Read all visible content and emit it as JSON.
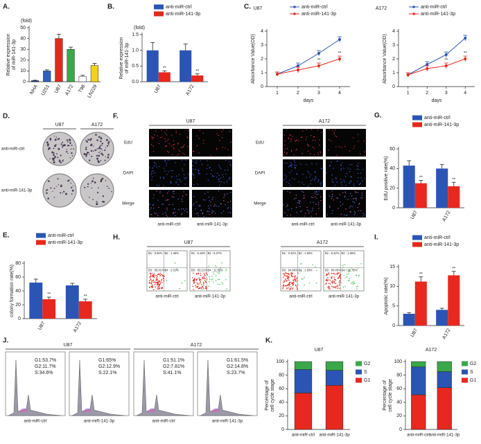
{
  "chart_data": [
    {
      "type": "bar",
      "label": "A.",
      "ylabel": [
        "Relative expression",
        "of miR-141-3p"
      ],
      "yunit": "(fold)",
      "categories": [
        "NHA",
        "U251",
        "U87",
        "A172",
        "T98",
        "LN229"
      ],
      "values": [
        1,
        10,
        40,
        30,
        5,
        15
      ],
      "errors": [
        0.4,
        1,
        4,
        2,
        1,
        2
      ],
      "colors": [
        "#1f3f99",
        "#2f5fc0",
        "#e02a1e",
        "#3aa84a",
        "#ffffff",
        "#f2d21a"
      ],
      "ylim": [
        0,
        50
      ],
      "yticks": [
        0,
        10,
        20,
        30,
        40,
        50
      ]
    },
    {
      "type": "bar",
      "label": "B.",
      "ylabel": [
        "Relative expression",
        "of miR-141-3p"
      ],
      "yunit": "(fold)",
      "legend": "top",
      "categories": [
        "U87",
        "A172"
      ],
      "series": [
        {
          "name": "anti-miR-ctrl",
          "color": "#2b55b5",
          "values": [
            1,
            1
          ],
          "errors": [
            0.25,
            0.2
          ]
        },
        {
          "name": "anti-miR-141-3p",
          "color": "#e8281e",
          "values": [
            0.3,
            0.2
          ],
          "errors": [
            0.05,
            0.05
          ],
          "significance": [
            "**",
            "**"
          ]
        }
      ],
      "ylim": [
        0,
        1.5
      ],
      "yticks": [
        {
          "value": 0,
          "label": "0.0"
        },
        0.5,
        {
          "value": 1,
          "label": "1.0"
        },
        1.5
      ]
    },
    {
      "type": "line",
      "label": "C.",
      "title": "U87",
      "ylabel": "Absorbance Value(OD)",
      "xlabel": "days",
      "legend": "top",
      "x": [
        1,
        2,
        3,
        4
      ],
      "xlim": [
        0.5,
        4.5
      ],
      "xticks": [
        1,
        2,
        3,
        4
      ],
      "series": [
        {
          "name": "anti-miR-ctrl",
          "color": "#2b55b5",
          "values": [
            0.9,
            1.5,
            2.4,
            3.4
          ],
          "errors": [
            0.15,
            0.2,
            0.2,
            0.2
          ]
        },
        {
          "name": "anti-miR-141-3p",
          "color": "#e8281e",
          "values": [
            0.9,
            1.2,
            1.5,
            2.0
          ],
          "errors": [
            0.15,
            0.2,
            0.2,
            0.2
          ],
          "significance": [
            null,
            null,
            "**",
            "**"
          ]
        }
      ],
      "ylim": [
        0,
        4
      ],
      "yticks": [
        0,
        1,
        2,
        3,
        4
      ]
    },
    {
      "type": "line",
      "title": "A172",
      "ylabel": "Absorbance Value(OD)",
      "xlabel": "days",
      "legend": "top",
      "x": [
        1,
        2,
        3,
        4
      ],
      "xlim": [
        0.5,
        4.5
      ],
      "xticks": [
        1,
        2,
        3,
        4
      ],
      "series": [
        {
          "name": "anti-miR-ctrl",
          "color": "#2b55b5",
          "values": [
            0.85,
            1.6,
            2.3,
            3.5
          ],
          "errors": [
            0.15,
            0.2,
            0.2,
            0.2
          ]
        },
        {
          "name": "anti-miR-141-3p",
          "color": "#e8281e",
          "values": [
            0.85,
            1.3,
            1.5,
            2.0
          ],
          "errors": [
            0.15,
            0.2,
            0.2,
            0.2
          ],
          "significance": [
            null,
            null,
            "**",
            "**"
          ]
        }
      ],
      "ylim": [
        0,
        4
      ],
      "yticks": [
        0,
        1,
        2,
        3,
        4
      ]
    },
    {
      "type": "bar",
      "label": "E.",
      "ylabel": "colony formation rate(%)",
      "legend": "top",
      "categories": [
        "U87",
        "A172"
      ],
      "series": [
        {
          "name": "anti-miR-ctrl",
          "color": "#2b55b5",
          "values": [
            52,
            48
          ],
          "errors": [
            5,
            3
          ]
        },
        {
          "name": "anti-miR-141-3p",
          "color": "#e8281e",
          "values": [
            28,
            25
          ],
          "errors": [
            3,
            3
          ],
          "significance": [
            "**",
            "**"
          ]
        }
      ],
      "ylim": [
        0,
        80
      ],
      "yticks": [
        0,
        20,
        40,
        60,
        80
      ]
    },
    {
      "type": "bar",
      "label": "G.",
      "ylabel": "EdU positive rate(%)",
      "legend": "top",
      "categories": [
        "U87",
        "A172"
      ],
      "series": [
        {
          "name": "anti-miR-ctrl",
          "color": "#2b55b5",
          "values": [
            43,
            40
          ],
          "errors": [
            5,
            4
          ]
        },
        {
          "name": "anti-miR-141-3p",
          "color": "#e8281e",
          "values": [
            25,
            22
          ],
          "errors": [
            3,
            4
          ],
          "significance": [
            "**",
            "**"
          ]
        }
      ],
      "ylim": [
        0,
        60
      ],
      "yticks": [
        0,
        20,
        40,
        60
      ]
    },
    {
      "type": "bar",
      "label": "I.",
      "ylabel": "Apoptotic rate(%)",
      "legend": "top",
      "categories": [
        "U87",
        "A172"
      ],
      "series": [
        {
          "name": "anti-miR-ctrl",
          "color": "#2b55b5",
          "values": [
            3,
            4
          ],
          "errors": [
            0.3,
            0.4
          ]
        },
        {
          "name": "anti-miR-141-3p",
          "color": "#e8281e",
          "values": [
            11.2,
            12.8
          ],
          "errors": [
            1.2,
            1
          ],
          "significance": [
            "**",
            "**"
          ]
        }
      ],
      "ylim": [
        0,
        15
      ],
      "yticks": [
        0,
        5,
        10,
        15
      ]
    },
    {
      "type": "bar",
      "stacked": true,
      "label": "K.",
      "title": "U87",
      "ylabel": [
        "Percentage of",
        "cell cycle stage"
      ],
      "legend": "right",
      "categories": [
        "anti-miR-ctrl",
        "anti-miR-141-3p"
      ],
      "series": [
        {
          "name": "G1",
          "color": "#e8281e",
          "values": [
            53.7,
            65
          ]
        },
        {
          "name": "S",
          "color": "#2b55b5",
          "values": [
            34.6,
            22.1
          ]
        },
        {
          "name": "G2",
          "color": "#3aa84a",
          "values": [
            11.7,
            12.9
          ]
        }
      ],
      "ylim": [
        0,
        100
      ],
      "yticks": [
        0,
        20,
        40,
        60,
        80,
        100
      ]
    },
    {
      "type": "bar",
      "stacked": true,
      "title": "A172",
      "ylabel": [
        "Percentage of",
        "cell cycle stage"
      ],
      "legend": "right",
      "categories": [
        "anti-miR-ctrl",
        "anti-miR-141-3p"
      ],
      "series": [
        {
          "name": "G1",
          "color": "#e8281e",
          "values": [
            51.1,
            61.5
          ]
        },
        {
          "name": "S",
          "color": "#2b55b5",
          "values": [
            41.1,
            23.7
          ]
        },
        {
          "name": "G2",
          "color": "#3aa84a",
          "values": [
            7.81,
            14.8
          ]
        }
      ],
      "ylim": [
        0,
        100
      ],
      "yticks": [
        0,
        20,
        40,
        60,
        80,
        100
      ]
    }
  ],
  "panels": {
    "D": {
      "label": "D.",
      "columns": [
        "U87",
        "A172"
      ],
      "rows": [
        "anti-miR-ctrl",
        "anti-miR-141-3p"
      ]
    },
    "F": {
      "label": "F.",
      "groups": [
        "U87",
        "A172"
      ],
      "rows": [
        "EdU",
        "DAPI",
        "Merge"
      ],
      "columns": [
        "anti-miR-ctrl",
        "anti-miR-141-3p"
      ]
    },
    "H": {
      "label": "H.",
      "groups": [
        "U87",
        "A172"
      ],
      "columns": [
        "anti-miR-ctrl",
        "anti-miR-141-3p"
      ],
      "quadrants": [
        [
          [
            "B1 : 0.92%",
            "B2 : 1.46%",
            "B3 : 95.61%",
            "B4 : 2.01%"
          ],
          [
            "B1 : 6.18%",
            "B2 : 5.37%",
            "B3 : 83.21%",
            "B4 : 11.26%"
          ]
        ],
        [
          [
            "B1 : 0.42%",
            "B2 : 1.56%",
            "B3 : 94.88%",
            "B4 : 1.93%"
          ],
          [
            "B1 : 5.42%",
            "B2 : 1.55%",
            "B3 : 80.45%",
            "B4 : 12.72%"
          ]
        ]
      ]
    },
    "J": {
      "label": "J.",
      "groups": [
        "U87",
        "A172"
      ],
      "columns": [
        "anti-miR-ctrl",
        "anti-miR-141-3p"
      ],
      "stats": [
        [
          [
            "G1:53.7%",
            "G2:11.7%",
            "S:34.6%"
          ],
          [
            "G1:65%",
            "G2:12.9%",
            "S:22.1%"
          ]
        ],
        [
          [
            "G1:51.1%",
            "G2:7.81%",
            "S:41.1%"
          ],
          [
            "G1:61.5%",
            "G2:14.8%",
            "S:23.7%"
          ]
        ]
      ]
    }
  }
}
